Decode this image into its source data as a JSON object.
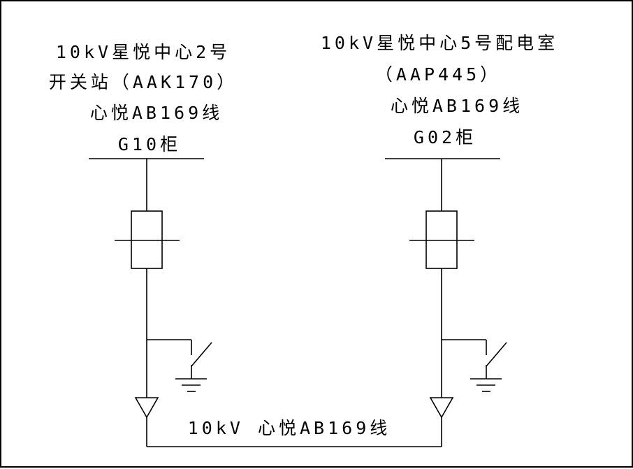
{
  "left_station": {
    "line1": "10kV星悦中心2号",
    "line2": "开关站（AAK170）",
    "feeder": "心悦AB169线",
    "cabinet": "G10柜"
  },
  "right_station": {
    "line1": "10kV星悦中心5号配电室",
    "line2": "（AAP445）",
    "feeder": "心悦AB169线",
    "cabinet": "G02柜"
  },
  "cable_label": "10kV 心悦AB169线"
}
